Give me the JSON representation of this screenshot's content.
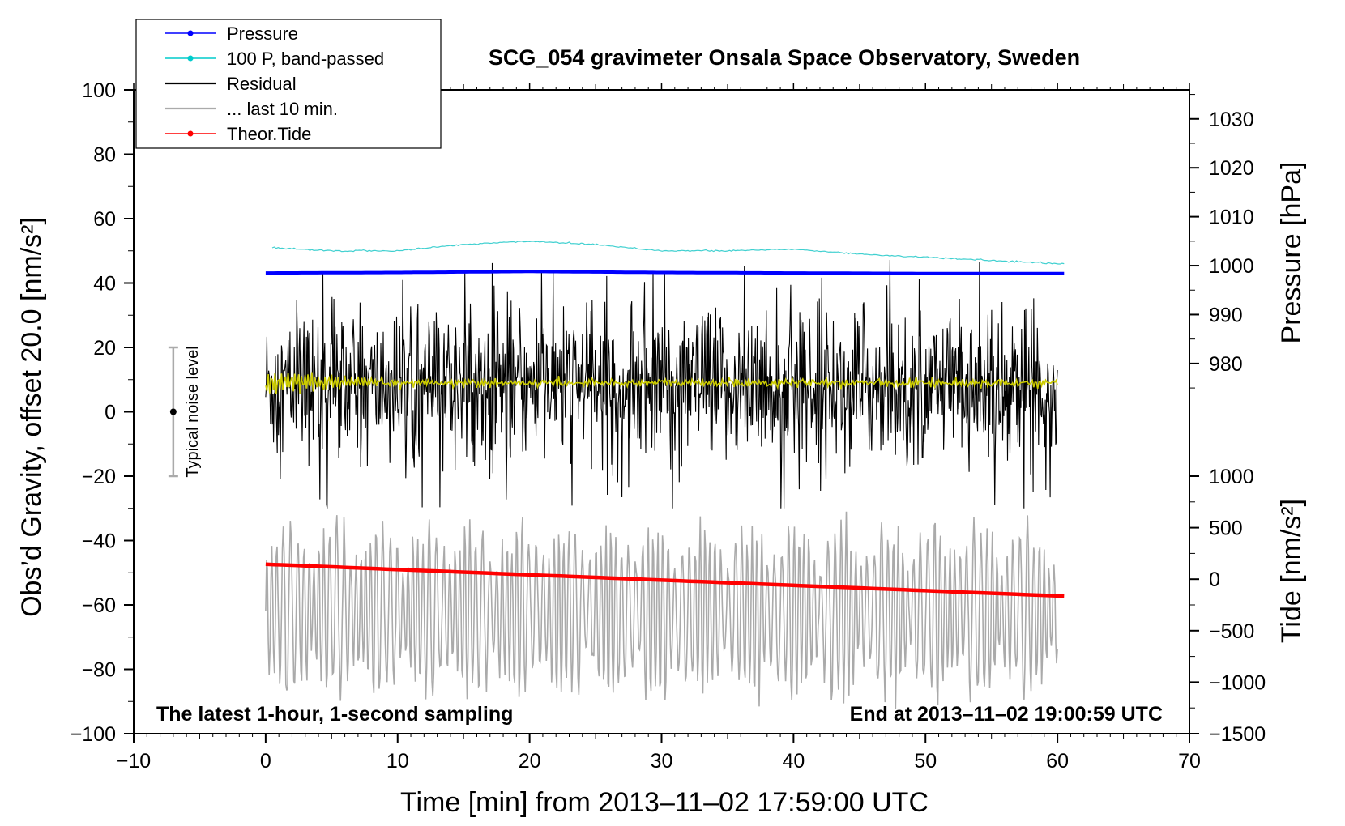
{
  "chart_data": {
    "type": "line",
    "title": "SCG_054 gravimeter Onsala Space Observatory, Sweden",
    "xlabel": "Time [min] from 2013–11–02 17:59:00 UTC",
    "ylabel": "Obs’d Gravity, offset 20.0 [nm/s²]",
    "ylabel_right_top": "Pressure [hPa]",
    "ylabel_right_bottom": "Tide [nm/s²]",
    "xlim": [
      -10,
      70
    ],
    "ylim": [
      -100,
      100
    ],
    "x_ticks": [
      -10,
      0,
      10,
      20,
      30,
      40,
      50,
      60,
      70
    ],
    "x_tick_labels": [
      "−10",
      "0",
      "10",
      "20",
      "30",
      "40",
      "50",
      "60",
      "70"
    ],
    "y_ticks": [
      -100,
      -80,
      -60,
      -40,
      -20,
      0,
      20,
      40,
      60,
      80,
      100
    ],
    "y_tick_labels": [
      "−100",
      "−80",
      "−60",
      "−40",
      "−20",
      "0",
      "20",
      "40",
      "60",
      "80",
      "100"
    ],
    "pressure_axis": {
      "ticks": [
        980,
        990,
        1000,
        1010,
        1020,
        1030
      ],
      "tick_labels": [
        "980",
        "990",
        "1000",
        "1010",
        "1020",
        "1030"
      ],
      "map_to_left": [
        [
          980,
          15
        ],
        [
          1030,
          91
        ]
      ]
    },
    "tide_axis": {
      "ticks": [
        -1500,
        -1000,
        -500,
        0,
        500,
        1000
      ],
      "tick_labels": [
        "−1500",
        "−1000",
        "−500",
        "0",
        "500",
        "1000"
      ],
      "map_to_left": [
        [
          -1500,
          -100
        ],
        [
          1000,
          -20
        ]
      ]
    },
    "annotations": {
      "left": "The latest 1‑hour, 1‑second sampling",
      "right": "End at 2013–11–02 19:00:59 UTC",
      "noise": "Typical noise level"
    },
    "noise_bar": {
      "x": -7,
      "low": -20,
      "high": 20,
      "center": 0
    },
    "legend": [
      {
        "label": "Pressure",
        "color": "#0000ff",
        "marker": true
      },
      {
        "label": "100 P, band‑passed",
        "color": "#00cccc",
        "marker": true
      },
      {
        "label": "Residual",
        "color": "#000000",
        "marker": false
      },
      {
        "label": "... last 10 min.",
        "color": "#aaaaaa",
        "marker": false
      },
      {
        "label": "Theor.Tide",
        "color": "#ff0000",
        "marker": true
      }
    ],
    "series": [
      {
        "name": "Pressure",
        "axis": "pressure",
        "color": "#0000ff",
        "x": [
          0,
          10,
          20,
          30,
          40,
          50,
          60
        ],
        "y": [
          998.5,
          998.6,
          998.8,
          998.6,
          998.5,
          998.4,
          998.4
        ]
      },
      {
        "name": "100 P, band‑passed",
        "axis": "left",
        "color": "#40d0d0",
        "x": [
          0,
          5,
          10,
          15,
          20,
          25,
          30,
          35,
          40,
          45,
          50,
          55,
          60
        ],
        "y": [
          51,
          50,
          50,
          52,
          53,
          52,
          50,
          50,
          50.5,
          49,
          48,
          47,
          46
        ]
      },
      {
        "name": "Residual",
        "axis": "left",
        "color": "#000000",
        "x": [
          0,
          60
        ],
        "y": [
          8,
          8
        ],
        "noise_amplitude": 35
      },
      {
        "name": "... last 10 min.",
        "axis": "left",
        "color": "#aaaaaa",
        "x": [
          0,
          60
        ],
        "y": [
          -62,
          -62
        ],
        "noise_amplitude": 28
      },
      {
        "name": "Smoothed residual",
        "axis": "left",
        "color": "#cccc00",
        "x": [
          0,
          60
        ],
        "y": [
          9,
          9
        ]
      },
      {
        "name": "Theor.Tide",
        "axis": "tide",
        "color": "#ff0000",
        "x": [
          0,
          60.5
        ],
        "y": [
          145,
          -165
        ]
      }
    ]
  }
}
